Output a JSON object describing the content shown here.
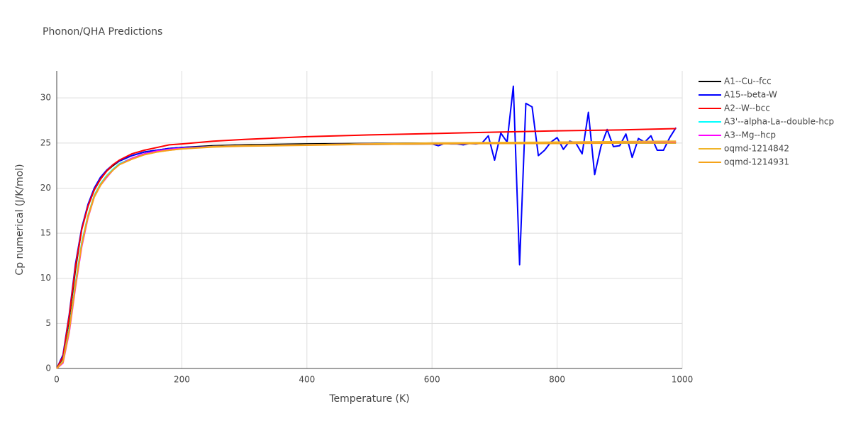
{
  "chart_data": {
    "type": "line",
    "title": "Phonon/QHA Predictions",
    "x_label": "Temperature (K)",
    "y_label": "Cp numerical (J/K/mol)",
    "xlim": [
      0,
      1000
    ],
    "ylim": [
      0,
      33
    ],
    "xticks": [
      0,
      200,
      400,
      600,
      800,
      1000
    ],
    "yticks": [
      0,
      5,
      10,
      15,
      20,
      25,
      30
    ],
    "grid": true,
    "legend": "right",
    "series": [
      {
        "name": "A1--Cu--fcc",
        "color": "#000000",
        "x": [
          0,
          10,
          20,
          30,
          40,
          50,
          60,
          70,
          80,
          90,
          100,
          120,
          140,
          160,
          180,
          200,
          250,
          300,
          400,
          500,
          600,
          700,
          800,
          900,
          990
        ],
        "values": [
          0,
          1.2,
          5.5,
          11,
          15.5,
          18,
          19.8,
          21,
          21.9,
          22.5,
          23,
          23.6,
          24,
          24.2,
          24.4,
          24.5,
          24.7,
          24.8,
          24.9,
          24.95,
          25,
          25,
          25,
          25.05,
          25.05
        ]
      },
      {
        "name": "A15--beta-W",
        "color": "#0000ff",
        "x": [
          0,
          10,
          20,
          30,
          40,
          50,
          60,
          70,
          80,
          90,
          100,
          120,
          140,
          160,
          180,
          200,
          250,
          300,
          400,
          500,
          600,
          610,
          620,
          630,
          640,
          650,
          660,
          670,
          680,
          690,
          700,
          710,
          720,
          730,
          740,
          750,
          760,
          770,
          780,
          790,
          800,
          810,
          820,
          830,
          840,
          850,
          860,
          870,
          880,
          890,
          900,
          910,
          920,
          930,
          940,
          950,
          960,
          970,
          980,
          990
        ],
        "values": [
          0,
          1.5,
          6,
          11.6,
          15.6,
          18.2,
          20,
          21.2,
          22,
          22.6,
          23,
          23.6,
          24,
          24.2,
          24.4,
          24.5,
          24.6,
          24.7,
          24.8,
          24.85,
          24.9,
          24.7,
          24.95,
          24.9,
          24.9,
          24.8,
          24.95,
          24.9,
          25,
          25.8,
          23.1,
          26.1,
          25.1,
          31.3,
          11.5,
          29.4,
          29,
          23.6,
          24.2,
          25.1,
          25.6,
          24.3,
          25.2,
          25,
          23.8,
          28.4,
          21.5,
          24.6,
          26.5,
          24.6,
          24.7,
          26,
          23.4,
          25.5,
          25.1,
          25.8,
          24.2,
          24.2,
          25.6,
          26.7
        ]
      },
      {
        "name": "A2--W--bcc",
        "color": "#ff0000",
        "x": [
          0,
          10,
          20,
          30,
          40,
          50,
          60,
          70,
          80,
          90,
          100,
          120,
          140,
          160,
          180,
          200,
          250,
          300,
          400,
          500,
          600,
          700,
          800,
          900,
          990
        ],
        "values": [
          0,
          1.3,
          5.8,
          11.3,
          15.4,
          18,
          19.8,
          21,
          21.9,
          22.6,
          23.1,
          23.8,
          24.2,
          24.5,
          24.8,
          24.9,
          25.2,
          25.4,
          25.7,
          25.9,
          26.05,
          26.2,
          26.35,
          26.45,
          26.6
        ]
      },
      {
        "name": "A3'--alpha-La--double-hcp",
        "color": "#00ffff",
        "x": [
          0,
          10,
          20,
          30,
          40,
          50,
          60,
          70,
          80,
          90,
          100,
          120,
          140,
          160,
          180,
          200,
          250,
          300,
          400,
          500,
          600,
          700,
          800,
          900,
          990
        ],
        "values": [
          0,
          0.8,
          4.5,
          9.5,
          14,
          17,
          19.2,
          20.5,
          21.4,
          22.1,
          22.7,
          23.3,
          23.8,
          24.1,
          24.3,
          24.4,
          24.6,
          24.7,
          24.8,
          24.9,
          24.95,
          25,
          25,
          25,
          25
        ]
      },
      {
        "name": "A3--Mg--hcp",
        "color": "#ff00ff",
        "x": [
          0,
          10,
          20,
          30,
          40,
          50,
          60,
          70,
          80,
          90,
          100,
          120,
          140,
          160,
          180,
          200,
          250,
          300,
          400,
          500,
          600,
          700,
          800,
          900,
          990
        ],
        "values": [
          0,
          0.6,
          4,
          9,
          13.5,
          16.7,
          19,
          20.3,
          21.2,
          22,
          22.6,
          23.3,
          23.8,
          24.1,
          24.3,
          24.4,
          24.6,
          24.7,
          24.8,
          24.9,
          24.95,
          25,
          25.05,
          25.05,
          25.1
        ]
      },
      {
        "name": "oqmd-1214842",
        "color": "#f0b428",
        "x": [
          0,
          10,
          20,
          30,
          40,
          50,
          60,
          70,
          80,
          90,
          100,
          120,
          140,
          160,
          180,
          200,
          250,
          300,
          400,
          500,
          600,
          700,
          800,
          900,
          990
        ],
        "values": [
          0,
          0.7,
          4.2,
          9.2,
          13.7,
          16.8,
          19,
          20.3,
          21.3,
          22,
          22.6,
          23.2,
          23.7,
          24,
          24.2,
          24.35,
          24.6,
          24.7,
          24.8,
          24.9,
          25,
          25.05,
          25.1,
          25.15,
          25.2
        ]
      },
      {
        "name": "oqmd-1214931",
        "color": "#f5a31a",
        "x": [
          0,
          10,
          20,
          30,
          40,
          50,
          60,
          70,
          80,
          90,
          100,
          120,
          140,
          160,
          180,
          200,
          250,
          300,
          400,
          500,
          600,
          700,
          800,
          900,
          990
        ],
        "values": [
          0,
          0.75,
          4.3,
          9.3,
          13.8,
          16.9,
          19.1,
          20.4,
          21.3,
          22,
          22.6,
          23.2,
          23.7,
          24,
          24.2,
          24.35,
          24.55,
          24.65,
          24.75,
          24.85,
          24.9,
          24.95,
          24.95,
          25,
          25
        ]
      }
    ]
  }
}
